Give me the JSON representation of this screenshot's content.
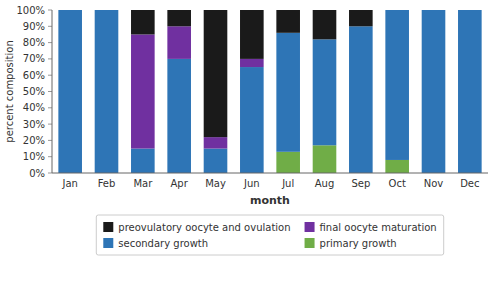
{
  "chart_data": {
    "type": "bar",
    "stacked": true,
    "categories": [
      "Jan",
      "Feb",
      "Mar",
      "Apr",
      "May",
      "Jun",
      "Jul",
      "Aug",
      "Sep",
      "Oct",
      "Nov",
      "Dec"
    ],
    "series": [
      {
        "name": "primary growth",
        "color": "#70ad47",
        "values": [
          0,
          0,
          0,
          0,
          0,
          0,
          13,
          17,
          0,
          8,
          0,
          0
        ]
      },
      {
        "name": "secondary growth",
        "color": "#2e75b6",
        "values": [
          100,
          100,
          15,
          70,
          15,
          65,
          73,
          65,
          90,
          92,
          100,
          100
        ]
      },
      {
        "name": "final oocyte maturation",
        "color": "#7030a0",
        "values": [
          0,
          0,
          70,
          20,
          7,
          5,
          0,
          0,
          0,
          0,
          0,
          0
        ]
      },
      {
        "name": "preovulatory oocyte and ovulation",
        "color": "#1a1a1a",
        "values": [
          0,
          0,
          15,
          10,
          78,
          30,
          14,
          18,
          10,
          0,
          0,
          0
        ]
      }
    ],
    "x_label": "month",
    "y_label": "percent composition",
    "ylim": [
      0,
      100
    ],
    "yticks": [
      {
        "value": 0,
        "label": "0%"
      },
      {
        "value": 10,
        "label": "10%"
      },
      {
        "value": 20,
        "label": "20%"
      },
      {
        "value": 30,
        "label": "30%"
      },
      {
        "value": 40,
        "label": "40%"
      },
      {
        "value": 50,
        "label": "50%"
      },
      {
        "value": 60,
        "label": "60%"
      },
      {
        "value": 70,
        "label": "70%"
      },
      {
        "value": 80,
        "label": "80%"
      },
      {
        "value": 90,
        "label": "90%"
      },
      {
        "value": 100,
        "label": "100%"
      }
    ],
    "grid": false,
    "legend": "bottom"
  }
}
